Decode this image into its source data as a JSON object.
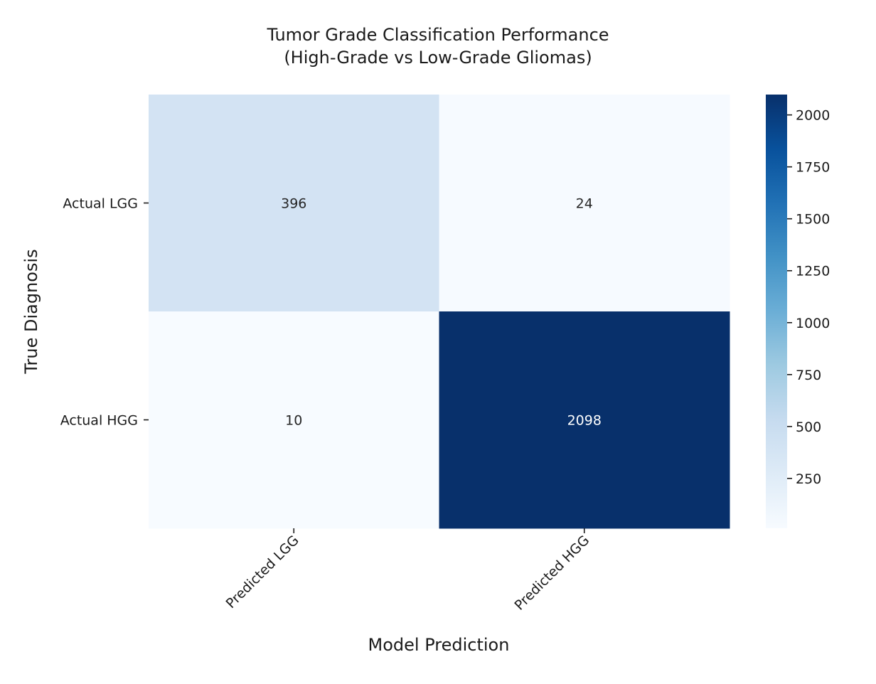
{
  "chart_data": {
    "type": "heatmap",
    "title": "Tumor Grade Classification Performance",
    "subtitle": "(High-Grade vs Low-Grade Gliomas)",
    "xlabel": "Model Prediction",
    "ylabel": "True Diagnosis",
    "x_categories": [
      "Predicted LGG",
      "Predicted HGG"
    ],
    "y_categories": [
      "Actual LGG",
      "Actual HGG"
    ],
    "values": [
      [
        396,
        24
      ],
      [
        10,
        2098
      ]
    ],
    "colormap": "Blues",
    "colorbar": {
      "min": 10,
      "max": 2098,
      "ticks": [
        250,
        500,
        750,
        1000,
        1250,
        1500,
        1750,
        2000
      ]
    },
    "grid": false,
    "legend": "colorbar-right"
  }
}
